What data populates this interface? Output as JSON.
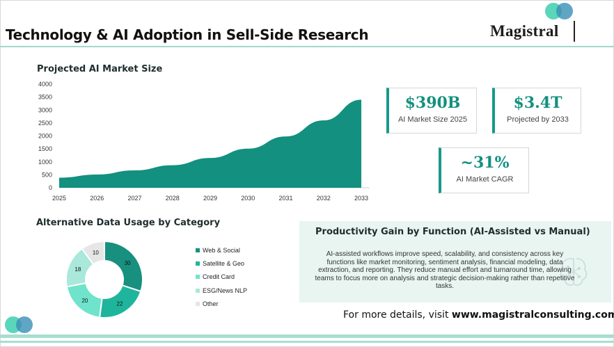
{
  "header": {
    "title": "Technology & AI Adoption in Sell-Side Research",
    "logo_text": "Magistral",
    "colors": {
      "accent": "#13907f",
      "rule": "#9fd8cc",
      "circle_a": "#48d1b3",
      "circle_b": "#3a8fb7"
    }
  },
  "market_chart": {
    "title": "Projected AI Market Size"
  },
  "kpis": [
    {
      "value": "$390B",
      "label": "AI Market Size 2025"
    },
    {
      "value": "$3.4T",
      "label": "Projected by 2033"
    },
    {
      "value": "~31%",
      "label": "AI Market CAGR"
    }
  ],
  "alt_data": {
    "title": "Alternative Data Usage by Category"
  },
  "productivity": {
    "title": "Productivity Gain by Function  (AI-Assisted vs Manual)",
    "description": "AI-assisted workflows improve speed, scalability, and consistency across key functions like market monitoring, sentiment analysis, financial modeling, data extraction, and reporting. They reduce manual effort and turnaround time, allowing teams to focus more on analysis and strategic decision-making rather than repetitive tasks."
  },
  "footer": {
    "prefix": "For more details, visit ",
    "url": "www.magistralconsulting.com"
  },
  "chart_data": [
    {
      "type": "area",
      "title": "Projected AI Market Size",
      "x": [
        2025,
        2026,
        2027,
        2028,
        2029,
        2030,
        2031,
        2032,
        2033
      ],
      "series": [
        {
          "values": [
            390,
            510,
            670,
            870,
            1150,
            1510,
            1980,
            2600,
            3400
          ],
          "color": "#13907f"
        }
      ],
      "ylim": [
        0,
        4000
      ],
      "yticks": [
        0,
        500,
        1000,
        1500,
        2000,
        2500,
        3000,
        3500,
        4000
      ],
      "grid": false,
      "legend": "none"
    },
    {
      "type": "pie",
      "title": "Alternative Data Usage by Category",
      "donut": true,
      "categories": [
        "Web & Social",
        "Satellite & Geo",
        "Credit Card",
        "ESG/News NLP",
        "Other"
      ],
      "values": [
        30,
        22,
        20,
        18,
        10
      ],
      "colors": [
        "#17907f",
        "#1fb59c",
        "#6fe3cc",
        "#a9e8da",
        "#e6e6e6"
      ],
      "legend": "right"
    }
  ]
}
